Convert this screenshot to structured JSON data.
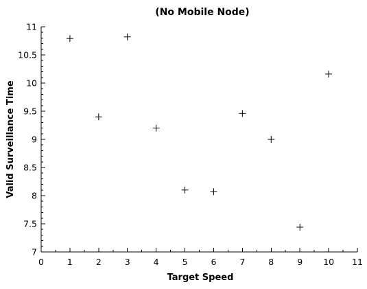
{
  "chart_data": {
    "type": "scatter",
    "title": "(No Mobile Node)",
    "xlabel": "Target Speed",
    "ylabel": "Valid Surveillance Time",
    "xlim": [
      0,
      11
    ],
    "ylim": [
      7,
      11
    ],
    "x_ticks": [
      "0",
      "1",
      "2",
      "3",
      "4",
      "5",
      "6",
      "7",
      "8",
      "9",
      "10",
      "11"
    ],
    "y_ticks": [
      "7",
      "7.5",
      "8",
      "8.5",
      "9",
      "9.5",
      "10",
      "10.5",
      "11"
    ],
    "marker": "plus",
    "grid": false,
    "legend": "none",
    "series": [
      {
        "points": [
          {
            "x": 1,
            "y": 10.79
          },
          {
            "x": 2,
            "y": 9.4
          },
          {
            "x": 3,
            "y": 10.82
          },
          {
            "x": 4,
            "y": 9.2
          },
          {
            "x": 5,
            "y": 8.1
          },
          {
            "x": 6,
            "y": 8.07
          },
          {
            "x": 7,
            "y": 9.46
          },
          {
            "x": 8,
            "y": 9.0
          },
          {
            "x": 9,
            "y": 7.44
          },
          {
            "x": 10,
            "y": 10.16
          }
        ]
      }
    ]
  }
}
